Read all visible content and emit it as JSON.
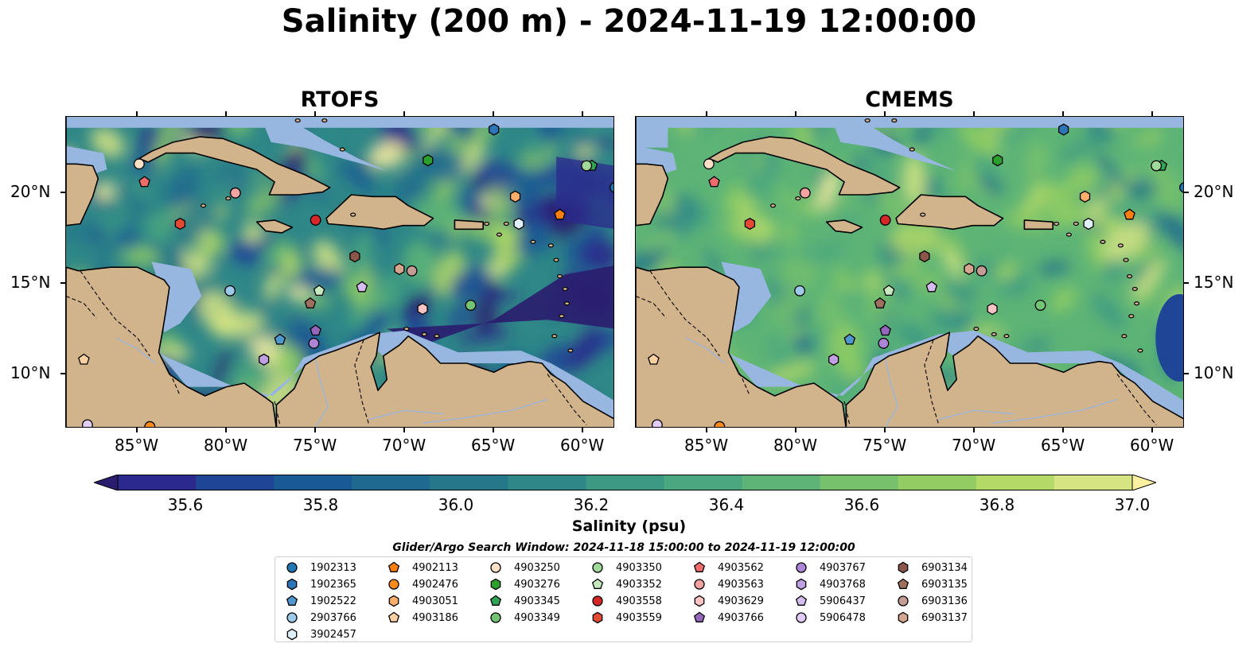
{
  "title": "Salinity (200 m) - 2024-11-19 12:00:00",
  "panels": [
    {
      "title": "RTOFS",
      "palette_bias": 0.0
    },
    {
      "title": "CMEMS",
      "palette_bias": 0.45
    }
  ],
  "lon_ticks": [
    {
      "value": -85,
      "label": "85°W"
    },
    {
      "value": -80,
      "label": "80°W"
    },
    {
      "value": -75,
      "label": "75°W"
    },
    {
      "value": -70,
      "label": "70°W"
    },
    {
      "value": -65,
      "label": "65°W"
    },
    {
      "value": -60,
      "label": "60°W"
    }
  ],
  "lat_ticks": [
    {
      "value": 20,
      "label": "20°N"
    },
    {
      "value": 15,
      "label": "15°N"
    },
    {
      "value": 10,
      "label": "10°N"
    }
  ],
  "extent": {
    "lon_min": -89,
    "lon_max": -58.2,
    "lat_min": 7,
    "lat_max": 24.2
  },
  "colorbar": {
    "label": "Salinity (psu)",
    "min": 35.5,
    "max": 37.0,
    "extend": "both",
    "ticks": [
      "35.6",
      "35.8",
      "36.0",
      "36.2",
      "36.4",
      "36.6",
      "36.8",
      "37.0"
    ],
    "colors": [
      "#2a1c6e",
      "#2b2a8c",
      "#1f4596",
      "#1a5a94",
      "#1e6a8e",
      "#26778a",
      "#2f8787",
      "#3d9884",
      "#4aa77e",
      "#5db476",
      "#77c16c",
      "#92cc63",
      "#b4d966",
      "#d6e482",
      "#fdf0a0"
    ]
  },
  "window_note": "Glider/Argo Search Window: 2024-11-18 15:00:00 to 2024-11-19 12:00:00",
  "colors": {
    "land": "#d2b48c",
    "shallow": "#97b6e0",
    "coast": "#000000",
    "rivers": "#9fb5d6"
  },
  "platforms": [
    {
      "id": "1902313",
      "marker": "circle",
      "color": "#1f77b4",
      "lon": -58.2,
      "lat": 20.3
    },
    {
      "id": "1902365",
      "marker": "hexagon",
      "color": "#2b75b8",
      "lon": -65.0,
      "lat": 23.5
    },
    {
      "id": "1902522",
      "marker": "pentagon",
      "color": "#4f97cf",
      "lon": -77.0,
      "lat": 11.9
    },
    {
      "id": "2903766",
      "marker": "circle",
      "color": "#9ecae9",
      "lon": -79.8,
      "lat": 14.6
    },
    {
      "id": "3902457",
      "marker": "hexagon",
      "color": "#dff0fb",
      "lon": -63.6,
      "lat": 18.3
    },
    {
      "id": "4902113",
      "marker": "pentagon",
      "color": "#ff7f0e",
      "lon": -61.3,
      "lat": 18.8
    },
    {
      "id": "4902476",
      "marker": "circle",
      "color": "#ff8c1a",
      "lon": -84.3,
      "lat": 7.1
    },
    {
      "id": "4903051",
      "marker": "hexagon",
      "color": "#fdae6b",
      "lon": -63.8,
      "lat": 19.8
    },
    {
      "id": "4903186",
      "marker": "pentagon",
      "color": "#fdd0a2",
      "lon": -88.0,
      "lat": 10.8
    },
    {
      "id": "4903250",
      "marker": "circle",
      "color": "#fde0c5",
      "lon": -84.9,
      "lat": 21.6
    },
    {
      "id": "4903276",
      "marker": "hexagon",
      "color": "#2ca02c",
      "lon": -68.7,
      "lat": 21.8
    },
    {
      "id": "4903345",
      "marker": "pentagon",
      "color": "#31a354",
      "lon": -59.5,
      "lat": 21.5
    },
    {
      "id": "4903349",
      "marker": "circle",
      "color": "#74c476",
      "lon": -66.3,
      "lat": 13.8
    },
    {
      "id": "4903350",
      "marker": "circle",
      "color": "#a1d99b",
      "lon": -59.8,
      "lat": 21.5
    },
    {
      "id": "4903352",
      "marker": "pentagon",
      "color": "#c7e9c0",
      "lon": -74.8,
      "lat": 14.6
    },
    {
      "id": "4903558",
      "marker": "circle",
      "color": "#d62728",
      "lon": -75.0,
      "lat": 18.5
    },
    {
      "id": "4903559",
      "marker": "hexagon",
      "color": "#e34a33",
      "lon": -82.6,
      "lat": 18.3
    },
    {
      "id": "4903562",
      "marker": "pentagon",
      "color": "#ef6c6c",
      "lon": -84.6,
      "lat": 20.6
    },
    {
      "id": "4903563",
      "marker": "circle",
      "color": "#f4a3a3",
      "lon": -79.5,
      "lat": 20.0
    },
    {
      "id": "4903629",
      "marker": "hexagon",
      "color": "#fbc4c4",
      "lon": -69.0,
      "lat": 13.6
    },
    {
      "id": "4903766",
      "marker": "pentagon",
      "color": "#9467bd",
      "lon": -75.0,
      "lat": 12.4
    },
    {
      "id": "4903767",
      "marker": "circle",
      "color": "#ad85d6",
      "lon": -75.1,
      "lat": 11.7
    },
    {
      "id": "4903768",
      "marker": "hexagon",
      "color": "#bfa0e3",
      "lon": -77.9,
      "lat": 10.8
    },
    {
      "id": "5906437",
      "marker": "pentagon",
      "color": "#d5bdf0",
      "lon": -72.4,
      "lat": 14.8
    },
    {
      "id": "5906478",
      "marker": "circle",
      "color": "#e3cdf7",
      "lon": -87.8,
      "lat": 7.2
    },
    {
      "id": "6903134",
      "marker": "hexagon",
      "color": "#8c564b",
      "lon": -72.8,
      "lat": 16.5
    },
    {
      "id": "6903135",
      "marker": "pentagon",
      "color": "#a0705e",
      "lon": -75.3,
      "lat": 13.9
    },
    {
      "id": "6903136",
      "marker": "circle",
      "color": "#c49c94",
      "lon": -69.6,
      "lat": 15.7
    },
    {
      "id": "6903137",
      "marker": "hexagon",
      "color": "#d4a58f",
      "lon": -70.3,
      "lat": 15.8
    }
  ]
}
